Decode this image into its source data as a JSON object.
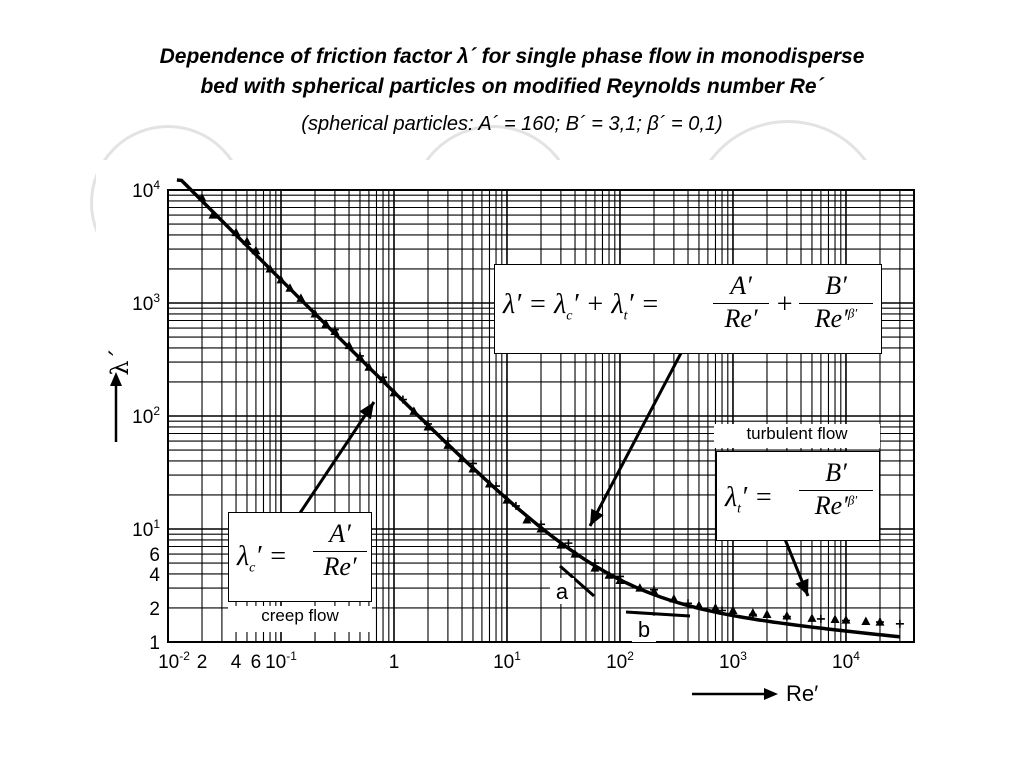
{
  "header": {
    "title_line1": "Dependence of friction factor λ´ for single phase flow in monodisperse",
    "title_line2": "bed with spherical particles on modified Reynolds number Re´",
    "subtitle": "(spherical particles: A´ = 160; B´ = 3,1; β´ = 0,1)"
  },
  "formulas": {
    "main": "λ′ = λc′ + λt′ = A′/Re′ + B′/Re′^β′",
    "creep": "λc′ = A′/Re′",
    "turbulent": "λt′ = B′/Re′^β′"
  },
  "labels": {
    "turbulent": "turbulent flow",
    "creep": "creep flow"
  },
  "chart_data": {
    "type": "scatter",
    "title": "",
    "xlabel": "Re′",
    "ylabel": "λ´",
    "xscale": "log",
    "yscale": "log",
    "xlim": [
      0.01,
      40000
    ],
    "ylim": [
      1,
      10000
    ],
    "grid": true,
    "x_tick_labels": [
      "10-2",
      "2",
      "4",
      "6",
      "10-1",
      "1",
      "101",
      "102",
      "103",
      "104"
    ],
    "y_tick_labels": [
      "1",
      "2",
      "4",
      "6",
      "101",
      "102",
      "103",
      "104"
    ],
    "line_annotations": [
      "a",
      "b"
    ],
    "fit_curve": {
      "A": 160,
      "B": 3.1,
      "beta": 0.1,
      "x": [
        0.012,
        0.03,
        0.1,
        0.3,
        1,
        3,
        10,
        30,
        100,
        300,
        1000,
        3000,
        10000,
        30000
      ],
      "y": [
        13300,
        5330,
        1600,
        535,
        163,
        55.9,
        18.5,
        7.1,
        3.56,
        2.46,
        1.95,
        1.72,
        1.58,
        1.49
      ]
    },
    "series": [
      {
        "marker": "triangle",
        "x": [
          0.02,
          0.025,
          0.04,
          0.05,
          0.06,
          0.08,
          0.1,
          0.12,
          0.15,
          0.2,
          0.25,
          0.3,
          0.4,
          0.5,
          0.6,
          0.8,
          1,
          1.5,
          2,
          3,
          4,
          5,
          7,
          10,
          15,
          20,
          30,
          40,
          60,
          80,
          100,
          150,
          200,
          300,
          500,
          700,
          1000,
          1500,
          2000,
          3000,
          5000,
          8000,
          10000,
          15000,
          20000
        ],
        "y": [
          8500,
          6000,
          4200,
          3500,
          2900,
          2000,
          1600,
          1350,
          1100,
          800,
          650,
          560,
          420,
          330,
          270,
          210,
          160,
          110,
          80,
          55,
          42,
          34,
          25,
          18,
          12,
          10,
          7.2,
          6.0,
          4.5,
          3.9,
          3.5,
          3.0,
          2.8,
          2.4,
          2.1,
          2.0,
          1.9,
          1.8,
          1.75,
          1.7,
          1.62,
          1.58,
          1.56,
          1.52,
          1.5
        ]
      },
      {
        "marker": "plus",
        "x": [
          0.3,
          0.5,
          0.8,
          1.2,
          2,
          3,
          5,
          8,
          12,
          20,
          35,
          60,
          100,
          200,
          400,
          800,
          1500,
          3000,
          6000,
          10000,
          20000,
          30000
        ],
        "y": [
          580,
          340,
          220,
          140,
          85,
          60,
          38,
          24,
          16,
          11,
          7.5,
          5.0,
          3.8,
          2.9,
          2.2,
          1.9,
          1.75,
          1.68,
          1.6,
          1.55,
          1.5,
          1.45
        ]
      }
    ]
  }
}
